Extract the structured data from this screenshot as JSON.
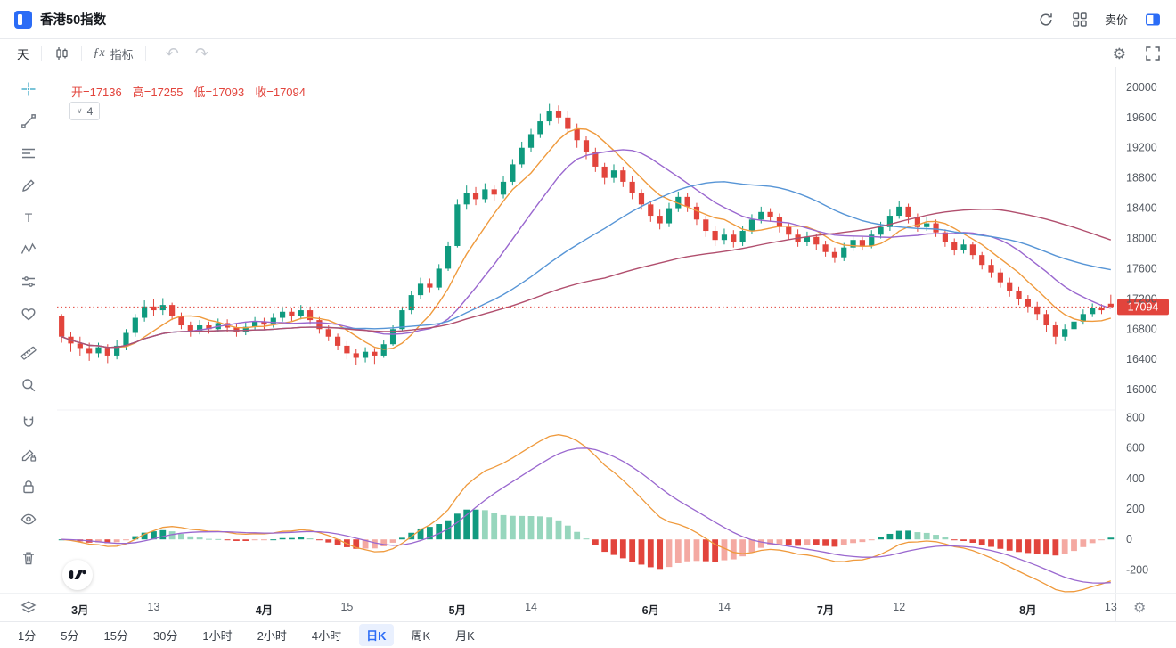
{
  "header": {
    "title": "香港50指数",
    "sell_label": "卖价"
  },
  "toolbar": {
    "period_label": "天",
    "fx_label": "ƒx",
    "indicator_label": "指标"
  },
  "icons": {
    "gear": "⚙",
    "undo": "↶",
    "redo": "↷",
    "chevron_down": "∨"
  },
  "legend": {
    "items": [
      "开=17136",
      "高=17255",
      "低=17093",
      "收=17094"
    ],
    "collapsed_count": "4"
  },
  "price_axis": {
    "ticks": [
      20000,
      19600,
      19200,
      18800,
      18400,
      18000,
      17600,
      17200,
      16800,
      16400,
      16000
    ]
  },
  "macd_axis": {
    "ticks": [
      800,
      600,
      400,
      200,
      0,
      -200
    ]
  },
  "timeframes": [
    {
      "label": "1分",
      "active": false
    },
    {
      "label": "5分",
      "active": false
    },
    {
      "label": "15分",
      "active": false
    },
    {
      "label": "30分",
      "active": false
    },
    {
      "label": "1小时",
      "active": false
    },
    {
      "label": "2小时",
      "active": false
    },
    {
      "label": "4小时",
      "active": false
    },
    {
      "label": "日K",
      "active": true
    },
    {
      "label": "周K",
      "active": false
    },
    {
      "label": "月K",
      "active": false
    }
  ],
  "colors": {
    "up": "#0f9a7e",
    "down": "#e2443c",
    "hist_up": "#119a7f",
    "hist_up_light": "#97d6bd",
    "hist_down": "#e2443c",
    "hist_down_light": "#f4a9a2",
    "macd_line": "#ef9a3d",
    "macd_signal": "#9a68cf",
    "price_tag": "#e2443c",
    "accent": "#2b6cf6"
  },
  "chart_data": {
    "type": "candlestick",
    "title": "香港50指数 日K",
    "price_range": [
      15730,
      20270
    ],
    "macd_range": [
      -350,
      850
    ],
    "last_price": 17094,
    "ma": [
      {
        "period": 7,
        "color": "#ef9a3d"
      },
      {
        "period": 14,
        "color": "#9a68cf"
      },
      {
        "period": 30,
        "color": "#5795d6"
      },
      {
        "period": 60,
        "color": "#b14f6e"
      }
    ],
    "macd": {
      "fast": 12,
      "slow": 26,
      "signal": 9
    },
    "time_ticks": [
      {
        "i": 2,
        "label": "3月",
        "month": true
      },
      {
        "i": 10,
        "label": "13"
      },
      {
        "i": 22,
        "label": "4月",
        "month": true
      },
      {
        "i": 31,
        "label": "15"
      },
      {
        "i": 43,
        "label": "5月",
        "month": true
      },
      {
        "i": 51,
        "label": "14"
      },
      {
        "i": 64,
        "label": "6月",
        "month": true
      },
      {
        "i": 72,
        "label": "14"
      },
      {
        "i": 83,
        "label": "7月",
        "month": true
      },
      {
        "i": 91,
        "label": "12"
      },
      {
        "i": 105,
        "label": "8月",
        "month": true
      },
      {
        "i": 114,
        "label": "13"
      }
    ],
    "ohlc": [
      [
        16980,
        17000,
        16620,
        16700
      ],
      [
        16700,
        16760,
        16500,
        16610
      ],
      [
        16610,
        16700,
        16450,
        16550
      ],
      [
        16550,
        16620,
        16380,
        16480
      ],
      [
        16480,
        16620,
        16420,
        16560
      ],
      [
        16560,
        16600,
        16350,
        16450
      ],
      [
        16450,
        16650,
        16400,
        16580
      ],
      [
        16580,
        16800,
        16520,
        16750
      ],
      [
        16750,
        17000,
        16700,
        16950
      ],
      [
        16950,
        17180,
        16900,
        17100
      ],
      [
        17100,
        17200,
        16980,
        17050
      ],
      [
        17050,
        17210,
        16990,
        17120
      ],
      [
        17120,
        17150,
        16920,
        16980
      ],
      [
        16980,
        17020,
        16800,
        16850
      ],
      [
        16850,
        16900,
        16700,
        16780
      ],
      [
        16780,
        16920,
        16730,
        16850
      ],
      [
        16850,
        16900,
        16740,
        16800
      ],
      [
        16800,
        16940,
        16760,
        16880
      ],
      [
        16880,
        16930,
        16760,
        16820
      ],
      [
        16820,
        16870,
        16700,
        16760
      ],
      [
        16760,
        16890,
        16720,
        16830
      ],
      [
        16830,
        16960,
        16790,
        16900
      ],
      [
        16900,
        16950,
        16800,
        16860
      ],
      [
        16860,
        17010,
        16820,
        16950
      ],
      [
        16950,
        17100,
        16900,
        17030
      ],
      [
        17030,
        17080,
        16910,
        16970
      ],
      [
        16970,
        17120,
        16930,
        17050
      ],
      [
        17050,
        17080,
        16860,
        16920
      ],
      [
        16920,
        16960,
        16740,
        16800
      ],
      [
        16800,
        16850,
        16640,
        16700
      ],
      [
        16700,
        16740,
        16520,
        16580
      ],
      [
        16580,
        16640,
        16400,
        16480
      ],
      [
        16480,
        16540,
        16330,
        16420
      ],
      [
        16420,
        16560,
        16360,
        16500
      ],
      [
        16500,
        16550,
        16340,
        16450
      ],
      [
        16450,
        16650,
        16420,
        16600
      ],
      [
        16600,
        16850,
        16580,
        16800
      ],
      [
        16800,
        17100,
        16780,
        17050
      ],
      [
        17050,
        17300,
        17000,
        17250
      ],
      [
        17250,
        17480,
        17200,
        17400
      ],
      [
        17400,
        17470,
        17280,
        17350
      ],
      [
        17350,
        17660,
        17320,
        17600
      ],
      [
        17600,
        17960,
        17570,
        17900
      ],
      [
        17900,
        18520,
        17880,
        18450
      ],
      [
        18450,
        18700,
        18380,
        18600
      ],
      [
        18600,
        18680,
        18440,
        18520
      ],
      [
        18520,
        18730,
        18470,
        18650
      ],
      [
        18650,
        18700,
        18500,
        18580
      ],
      [
        18580,
        18820,
        18530,
        18750
      ],
      [
        18750,
        19050,
        18700,
        18980
      ],
      [
        18980,
        19280,
        18940,
        19200
      ],
      [
        19200,
        19450,
        19150,
        19380
      ],
      [
        19380,
        19650,
        19330,
        19550
      ],
      [
        19550,
        19780,
        19500,
        19680
      ],
      [
        19680,
        19760,
        19520,
        19600
      ],
      [
        19600,
        19680,
        19380,
        19450
      ],
      [
        19450,
        19520,
        19200,
        19300
      ],
      [
        19300,
        19350,
        19050,
        19150
      ],
      [
        19150,
        19200,
        18880,
        18950
      ],
      [
        18950,
        19000,
        18720,
        18800
      ],
      [
        18800,
        18980,
        18740,
        18900
      ],
      [
        18900,
        18950,
        18680,
        18750
      ],
      [
        18750,
        18820,
        18520,
        18600
      ],
      [
        18600,
        18650,
        18380,
        18450
      ],
      [
        18450,
        18500,
        18220,
        18300
      ],
      [
        18300,
        18380,
        18120,
        18200
      ],
      [
        18200,
        18470,
        18150,
        18400
      ],
      [
        18400,
        18620,
        18350,
        18550
      ],
      [
        18550,
        18600,
        18350,
        18420
      ],
      [
        18420,
        18470,
        18180,
        18250
      ],
      [
        18250,
        18300,
        18020,
        18100
      ],
      [
        18100,
        18160,
        17900,
        17980
      ],
      [
        17980,
        18130,
        17920,
        18050
      ],
      [
        18050,
        18110,
        17880,
        17950
      ],
      [
        17950,
        18170,
        17900,
        18100
      ],
      [
        18100,
        18320,
        18060,
        18250
      ],
      [
        18250,
        18420,
        18200,
        18350
      ],
      [
        18350,
        18400,
        18220,
        18280
      ],
      [
        18280,
        18330,
        18080,
        18150
      ],
      [
        18150,
        18200,
        17980,
        18050
      ],
      [
        18050,
        18120,
        17890,
        17950
      ],
      [
        17950,
        18090,
        17900,
        18020
      ],
      [
        18020,
        18060,
        17850,
        17920
      ],
      [
        17920,
        17970,
        17760,
        17820
      ],
      [
        17820,
        17880,
        17680,
        17750
      ],
      [
        17750,
        17940,
        17700,
        17880
      ],
      [
        17880,
        18040,
        17830,
        17980
      ],
      [
        17980,
        18020,
        17840,
        17900
      ],
      [
        17900,
        18110,
        17870,
        18050
      ],
      [
        18050,
        18220,
        18000,
        18150
      ],
      [
        18150,
        18380,
        18100,
        18300
      ],
      [
        18300,
        18490,
        18260,
        18420
      ],
      [
        18420,
        18460,
        18200,
        18280
      ],
      [
        18280,
        18330,
        18090,
        18150
      ],
      [
        18150,
        18280,
        18100,
        18200
      ],
      [
        18200,
        18250,
        18020,
        18080
      ],
      [
        18080,
        18120,
        17890,
        17950
      ],
      [
        17950,
        18000,
        17780,
        17850
      ],
      [
        17850,
        17990,
        17800,
        17920
      ],
      [
        17920,
        17950,
        17720,
        17780
      ],
      [
        17780,
        17820,
        17590,
        17650
      ],
      [
        17650,
        17720,
        17480,
        17550
      ],
      [
        17550,
        17600,
        17350,
        17420
      ],
      [
        17420,
        17480,
        17230,
        17300
      ],
      [
        17300,
        17360,
        17120,
        17200
      ],
      [
        17200,
        17250,
        17020,
        17100
      ],
      [
        17100,
        17160,
        16920,
        17000
      ],
      [
        17000,
        17050,
        16760,
        16850
      ],
      [
        16850,
        16900,
        16600,
        16700
      ],
      [
        16700,
        16860,
        16640,
        16800
      ],
      [
        16800,
        16960,
        16750,
        16900
      ],
      [
        16900,
        17060,
        16860,
        17000
      ],
      [
        17000,
        17140,
        16960,
        17080
      ],
      [
        17080,
        17130,
        17000,
        17050
      ],
      [
        17136,
        17255,
        17093,
        17094
      ]
    ]
  }
}
